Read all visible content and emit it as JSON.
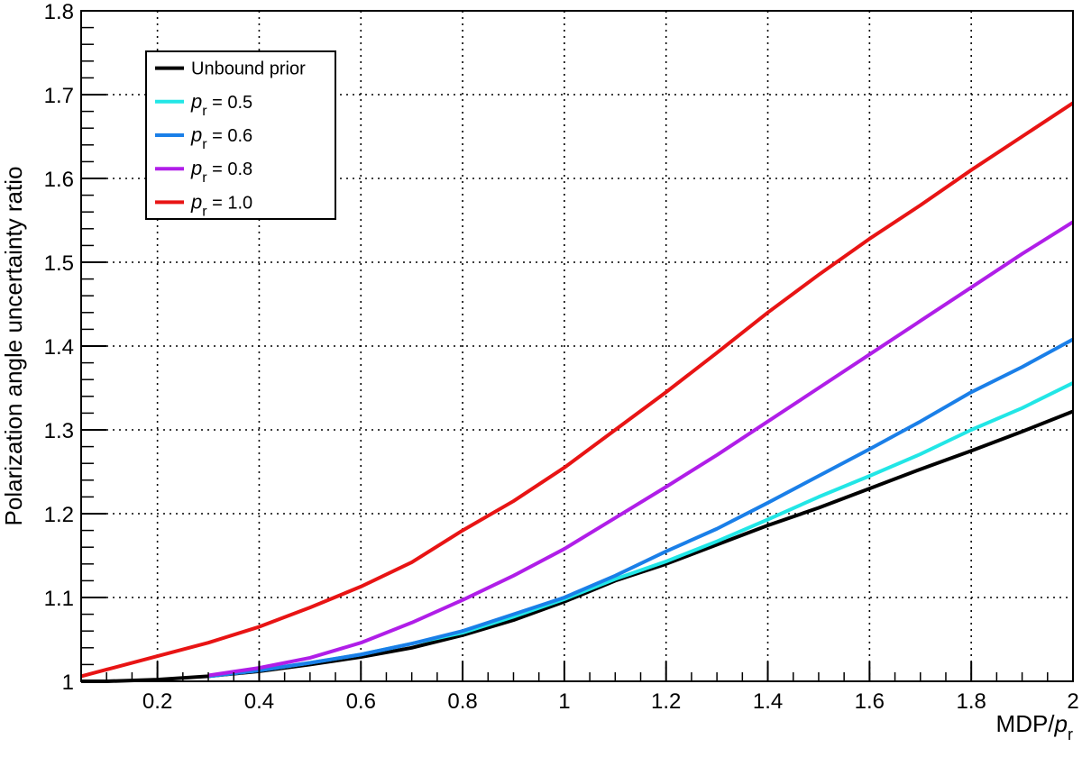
{
  "chart_data": {
    "type": "line",
    "title": "",
    "xlabel": "MDP/p_r",
    "xlabel_parts": {
      "main": "MDP/",
      "italic": "p",
      "sub": "r"
    },
    "ylabel": "Polarization angle uncertainty ratio",
    "xlim": [
      0.05,
      2.0
    ],
    "ylim": [
      1.0,
      1.8
    ],
    "grid": true,
    "legend_position": "top-left",
    "x_ticks": [
      {
        "value": 0.2,
        "label": "0.2"
      },
      {
        "value": 0.4,
        "label": "0.4"
      },
      {
        "value": 0.6,
        "label": "0.6"
      },
      {
        "value": 0.8,
        "label": "0.8"
      },
      {
        "value": 1.0,
        "label": "1"
      },
      {
        "value": 1.2,
        "label": "1.2"
      },
      {
        "value": 1.4,
        "label": "1.4"
      },
      {
        "value": 1.6,
        "label": "1.6"
      },
      {
        "value": 1.8,
        "label": "1.8"
      },
      {
        "value": 2.0,
        "label": "2"
      }
    ],
    "y_ticks": [
      {
        "value": 1.0,
        "label": "1"
      },
      {
        "value": 1.1,
        "label": "1.1"
      },
      {
        "value": 1.2,
        "label": "1.2"
      },
      {
        "value": 1.3,
        "label": "1.3"
      },
      {
        "value": 1.4,
        "label": "1.4"
      },
      {
        "value": 1.5,
        "label": "1.5"
      },
      {
        "value": 1.6,
        "label": "1.6"
      },
      {
        "value": 1.7,
        "label": "1.7"
      },
      {
        "value": 1.8,
        "label": "1.8"
      }
    ],
    "x": [
      0.05,
      0.1,
      0.2,
      0.3,
      0.4,
      0.5,
      0.6,
      0.7,
      0.8,
      0.9,
      1.0,
      1.1,
      1.2,
      1.3,
      1.4,
      1.5,
      1.6,
      1.7,
      1.8,
      1.9,
      2.0
    ],
    "series": [
      {
        "name": "Unbound prior",
        "label_parts": {
          "text": "Unbound prior"
        },
        "color": "#000000",
        "values": [
          1.0,
          1.0,
          1.002,
          1.006,
          1.012,
          1.02,
          1.029,
          1.04,
          1.055,
          1.073,
          1.095,
          1.12,
          1.14,
          1.163,
          1.186,
          1.207,
          1.23,
          1.253,
          1.275,
          1.298,
          1.322
        ]
      },
      {
        "name": "p_r = 0.5",
        "label_parts": {
          "italic": "p",
          "sub": "r",
          "rest": " = 0.5"
        },
        "color": "#22e6e6",
        "values": [
          null,
          null,
          null,
          1.006,
          1.013,
          1.022,
          1.032,
          1.045,
          1.058,
          1.077,
          1.098,
          1.122,
          1.143,
          1.167,
          1.193,
          1.22,
          1.245,
          1.271,
          1.3,
          1.326,
          1.356
        ]
      },
      {
        "name": "p_r = 0.6",
        "label_parts": {
          "italic": "p",
          "sub": "r",
          "rest": " = 0.6"
        },
        "color": "#1a7fe8",
        "values": [
          null,
          null,
          null,
          1.006,
          1.013,
          1.022,
          1.032,
          1.045,
          1.06,
          1.08,
          1.1,
          1.126,
          1.155,
          1.182,
          1.213,
          1.245,
          1.277,
          1.31,
          1.345,
          1.375,
          1.408
        ]
      },
      {
        "name": "p_r = 0.8",
        "label_parts": {
          "italic": "p",
          "sub": "r",
          "rest": " = 0.8"
        },
        "color": "#b01ee8",
        "values": [
          null,
          null,
          null,
          1.007,
          1.016,
          1.028,
          1.046,
          1.07,
          1.097,
          1.126,
          1.158,
          1.195,
          1.232,
          1.27,
          1.31,
          1.35,
          1.39,
          1.43,
          1.47,
          1.51,
          1.548
        ]
      },
      {
        "name": "p_r = 1.0",
        "label_parts": {
          "italic": "p",
          "sub": "r",
          "rest": " = 1.0"
        },
        "color": "#e81414",
        "values": [
          1.006,
          1.014,
          1.03,
          1.046,
          1.065,
          1.088,
          1.113,
          1.142,
          1.18,
          1.215,
          1.255,
          1.3,
          1.345,
          1.392,
          1.44,
          1.485,
          1.528,
          1.568,
          1.61,
          1.65,
          1.69
        ]
      }
    ]
  }
}
